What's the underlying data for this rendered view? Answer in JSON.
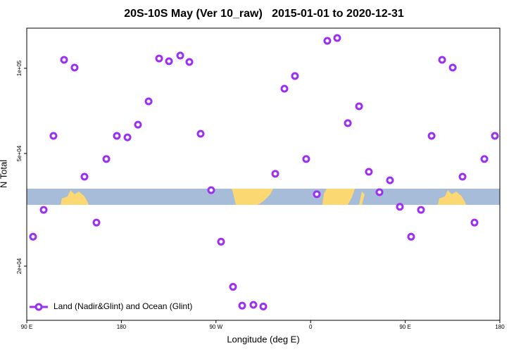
{
  "chart_data": {
    "type": "scatter",
    "title": "20S-10S May (Ver 10_raw)   2015-01-01 to 2020-12-31",
    "x_label": "Longitude (deg E)",
    "y_label": "N Total",
    "xlim": [
      90,
      540
    ],
    "xticks": [
      {
        "value": 90,
        "label": "90 E"
      },
      180,
      {
        "value": 270,
        "label": "90 W"
      },
      {
        "value": 360,
        "label": "0"
      },
      {
        "value": 450,
        "label": "90 E"
      },
      {
        "value": 540,
        "label": "180"
      }
    ],
    "ylim": [
      12870,
      138600
    ],
    "yticks": [
      {
        "value": 20000,
        "label": "2e+04"
      },
      {
        "value": 50000,
        "label": "5e+04"
      },
      {
        "value": 100000,
        "label": "1e+05"
      }
    ],
    "log_y": true,
    "legend": "bottom-left",
    "series": [
      {
        "name": "Land (Nadir&Glint) and Ocean (Glint)",
        "color": "#9b30f0",
        "x": [
          96.0,
          106.1,
          115.4,
          125.5,
          135.5,
          144.9,
          156.3,
          165.7,
          175.7,
          185.8,
          195.8,
          205.9,
          215.9,
          225.3,
          236.0,
          244.7,
          255.4,
          265.4,
          274.8,
          286.2,
          294.9,
          305.6,
          315.0,
          326.4,
          335.1,
          345.1,
          355.8,
          365.9,
          375.9,
          385.3,
          395.4,
          406.1,
          415.4,
          425.5,
          435.5,
          444.9,
          455.6,
          465.0,
          475.1,
          485.1,
          495.2,
          504.5,
          515.9,
          525.3,
          535.3
        ],
        "values": [
          25400,
          31600,
          57700,
          107100,
          100600,
          41400,
          28500,
          47800,
          57700,
          57000,
          63200,
          76400,
          108300,
          105900,
          110900,
          105300,
          58700,
          37100,
          24400,
          16900,
          14500,
          14600,
          14400,
          42400,
          84700,
          93900,
          47800,
          35900,
          125000,
          127900,
          64000,
          73400,
          43100,
          36500,
          40200,
          32400,
          25400,
          31600,
          57700,
          107100,
          100600,
          41400,
          28500,
          47800,
          57700
        ]
      }
    ]
  }
}
